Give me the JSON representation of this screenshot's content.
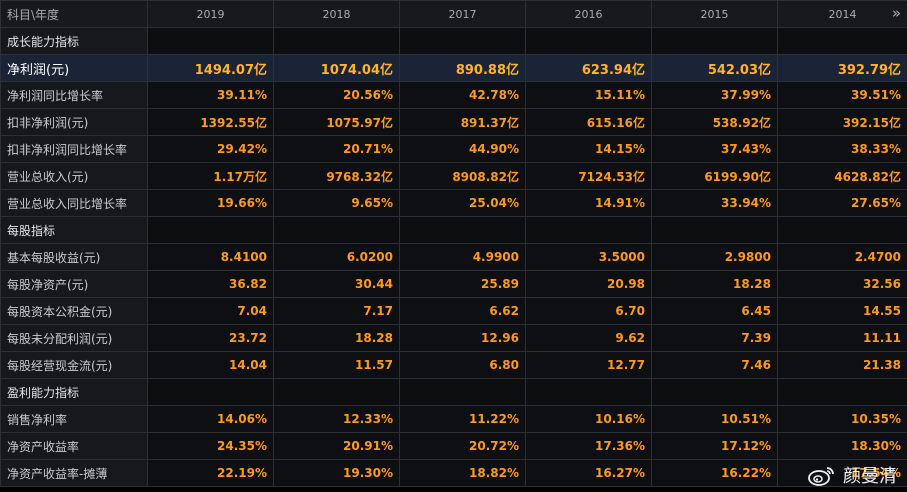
{
  "header": {
    "first_col": "科目\\年度",
    "years": [
      "2019",
      "2018",
      "2017",
      "2016",
      "2015",
      "2014"
    ],
    "more_icon": "»"
  },
  "sections": [
    {
      "title": "成长能力指标",
      "rows": [
        {
          "label": "净利润(元)",
          "highlight": true,
          "values": [
            "1494.07亿",
            "1074.04亿",
            "890.88亿",
            "623.94亿",
            "542.03亿",
            "392.79亿"
          ]
        },
        {
          "label": "净利润同比增长率",
          "values": [
            "39.11%",
            "20.56%",
            "42.78%",
            "15.11%",
            "37.99%",
            "39.51%"
          ]
        },
        {
          "label": "扣非净利润(元)",
          "values": [
            "1392.55亿",
            "1075.97亿",
            "891.37亿",
            "615.16亿",
            "538.92亿",
            "392.15亿"
          ]
        },
        {
          "label": "扣非净利润同比增长率",
          "values": [
            "29.42%",
            "20.71%",
            "44.90%",
            "14.15%",
            "37.43%",
            "38.33%"
          ]
        },
        {
          "label": "营业总收入(元)",
          "values": [
            "1.17万亿",
            "9768.32亿",
            "8908.82亿",
            "7124.53亿",
            "6199.90亿",
            "4628.82亿"
          ]
        },
        {
          "label": "营业总收入同比增长率",
          "values": [
            "19.66%",
            "9.65%",
            "25.04%",
            "14.91%",
            "33.94%",
            "27.65%"
          ]
        }
      ]
    },
    {
      "title": "每股指标",
      "rows": [
        {
          "label": "基本每股收益(元)",
          "values": [
            "8.4100",
            "6.0200",
            "4.9900",
            "3.5000",
            "2.9800",
            "2.4700"
          ]
        },
        {
          "label": "每股净资产(元)",
          "values": [
            "36.82",
            "30.44",
            "25.89",
            "20.98",
            "18.28",
            "32.56"
          ]
        },
        {
          "label": "每股资本公积金(元)",
          "values": [
            "7.04",
            "7.17",
            "6.62",
            "6.70",
            "6.45",
            "14.55"
          ]
        },
        {
          "label": "每股未分配利润(元)",
          "values": [
            "23.72",
            "18.28",
            "12.96",
            "9.62",
            "7.39",
            "11.11"
          ]
        },
        {
          "label": "每股经营现金流(元)",
          "values": [
            "14.04",
            "11.57",
            "6.80",
            "12.77",
            "7.46",
            "21.38"
          ]
        }
      ]
    },
    {
      "title": "盈利能力指标",
      "rows": [
        {
          "label": "销售净利率",
          "values": [
            "14.06%",
            "12.33%",
            "11.22%",
            "10.16%",
            "10.51%",
            "10.35%"
          ]
        },
        {
          "label": "净资产收益率",
          "values": [
            "24.35%",
            "20.91%",
            "20.72%",
            "17.36%",
            "17.12%",
            "18.30%"
          ]
        },
        {
          "label": "净资产收益率-摊薄",
          "values": [
            "22.19%",
            "19.30%",
            "18.82%",
            "16.27%",
            "16.22%",
            "17.54%"
          ]
        }
      ]
    }
  ],
  "watermark": {
    "icon": "weibo-icon",
    "text": "颜曼清"
  },
  "colors": {
    "value": "#ff9a1f",
    "label": "#c8ccd2",
    "highlight_bg": "#1b2436",
    "background": "#000000"
  }
}
